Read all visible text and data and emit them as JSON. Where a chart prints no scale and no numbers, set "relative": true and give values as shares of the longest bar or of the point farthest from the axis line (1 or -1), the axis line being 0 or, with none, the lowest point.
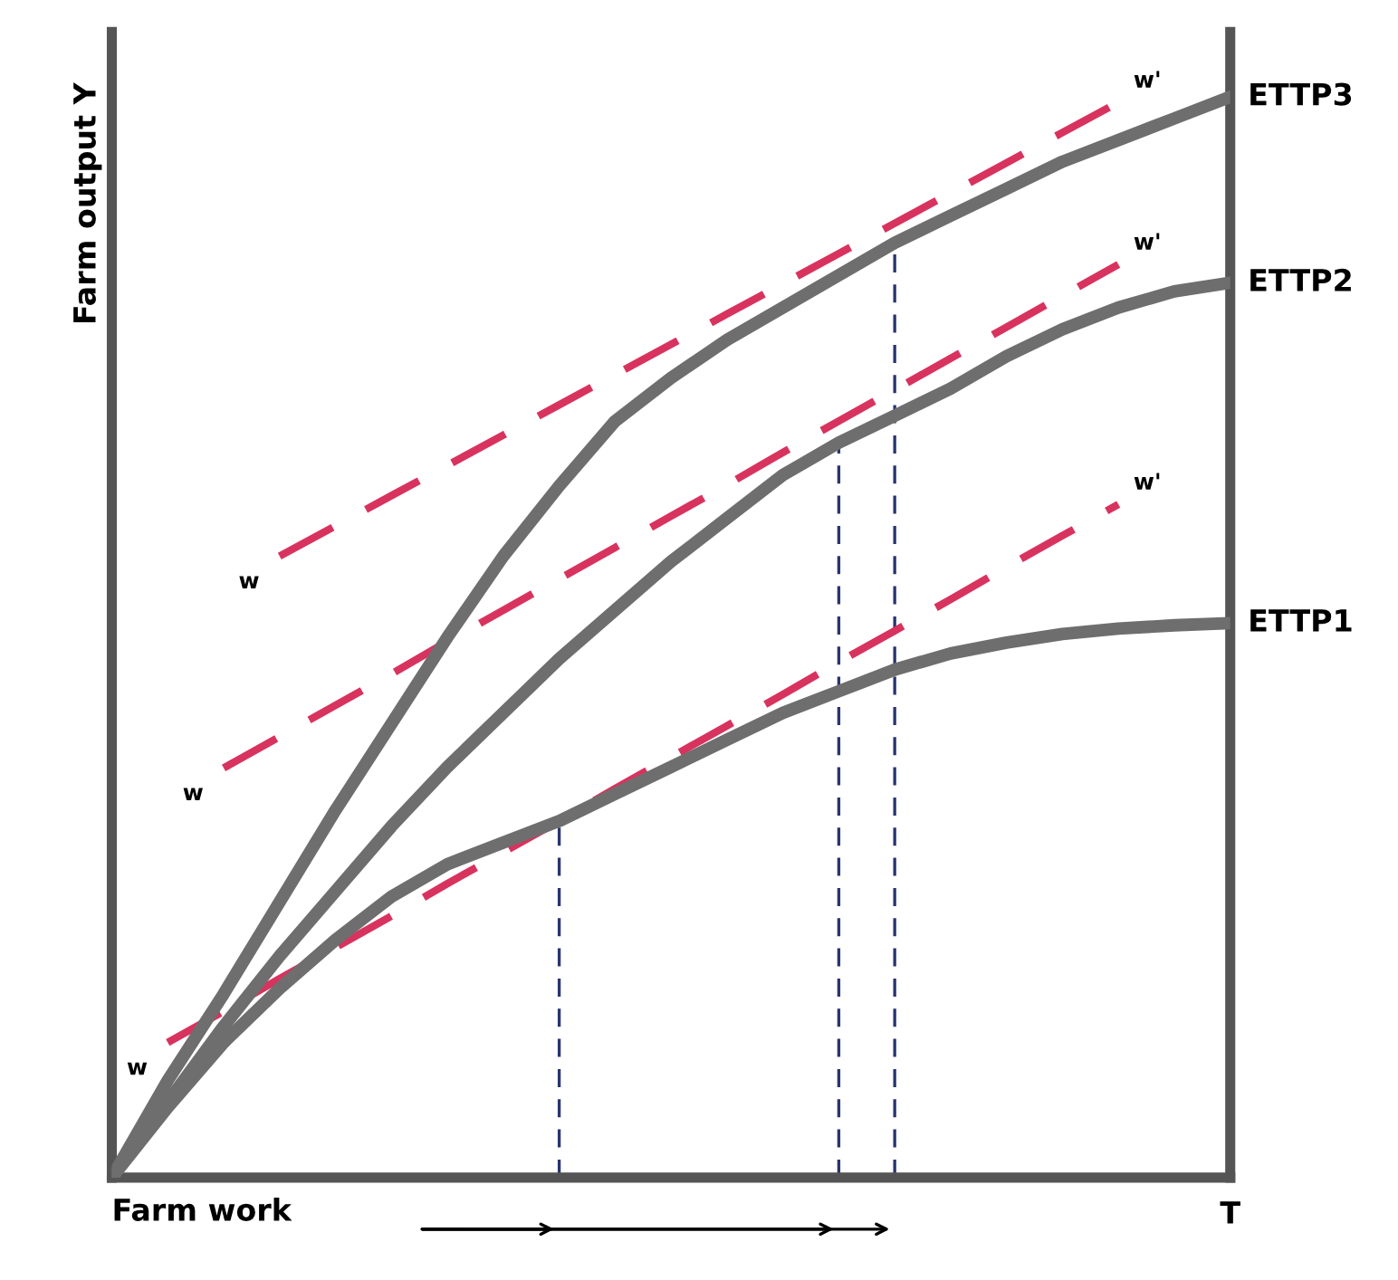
{
  "chart_data": {
    "type": "line",
    "relative": true,
    "xlabel": "Farm work",
    "ylabel": "Farm output Y",
    "legend": false,
    "marker": "none",
    "categories": [
      null,
      null,
      null,
      null,
      null,
      null,
      null,
      null,
      null,
      null,
      null,
      null,
      null,
      null,
      null,
      null,
      null,
      null,
      null,
      null,
      null
    ],
    "series": [
      {
        "name": "ETTP3",
        "color": "#6e6e6e",
        "line_style": "solid",
        "values": [
          0,
          0.09,
          0.17,
          0.255,
          0.34,
          0.42,
          0.5,
          0.575,
          0.64,
          0.7,
          0.74,
          0.775,
          0.805,
          0.835,
          0.865,
          0.89,
          0.915,
          0.94,
          0.96,
          0.98,
          1.0
        ]
      },
      {
        "name": "ETTP2",
        "color": "#6e6e6e",
        "line_style": "solid",
        "values": [
          0,
          0.07,
          0.14,
          0.205,
          0.265,
          0.325,
          0.38,
          0.43,
          0.48,
          0.525,
          0.57,
          0.61,
          0.65,
          0.68,
          0.705,
          0.73,
          0.76,
          0.785,
          0.805,
          0.82,
          0.828
        ]
      },
      {
        "name": "ETTP1",
        "color": "#6e6e6e",
        "line_style": "solid",
        "values": [
          0,
          0.065,
          0.125,
          0.175,
          0.22,
          0.26,
          0.29,
          0.31,
          0.33,
          0.355,
          0.38,
          0.405,
          0.43,
          0.45,
          0.47,
          0.485,
          0.495,
          0.503,
          0.508,
          0.511,
          0.513
        ]
      },
      {
        "color": "#d8335e",
        "line_style": "dashed",
        "values": [
          null,
          null,
          null,
          0.575,
          0.603,
          0.631,
          0.659,
          0.687,
          0.715,
          0.743,
          0.771,
          0.799,
          0.827,
          0.855,
          0.883,
          0.911,
          0.939,
          0.967,
          0.995,
          null,
          null
        ]
      },
      {
        "color": "#d8335e",
        "line_style": "dashed",
        "values": [
          null,
          null,
          0.379,
          0.408,
          0.437,
          0.466,
          0.496,
          0.525,
          0.554,
          0.583,
          0.612,
          0.641,
          0.671,
          0.7,
          0.729,
          0.758,
          0.787,
          0.816,
          0.845,
          null,
          null
        ]
      },
      {
        "color": "#d8335e",
        "line_style": "dashed",
        "values": [
          null,
          0.125,
          0.154,
          0.184,
          0.213,
          0.242,
          0.272,
          0.301,
          0.33,
          0.36,
          0.389,
          0.418,
          0.447,
          0.477,
          0.506,
          0.535,
          0.565,
          0.594,
          0.623,
          null,
          null
        ]
      }
    ],
    "annotations": [
      "w",
      "w'",
      "w",
      "w'",
      "w",
      "w'",
      "T"
    ]
  }
}
